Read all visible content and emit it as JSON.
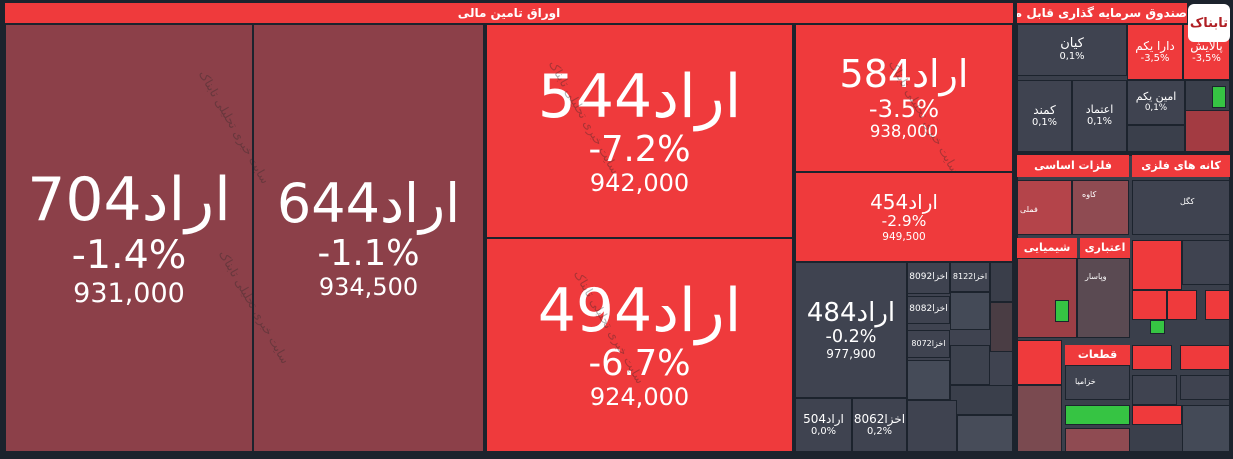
{
  "logo": "تابناک",
  "watermark": "سایت خبری تحلیلی تابناک",
  "groups": [
    {
      "title": "اوراق تامین مالی",
      "tiles": [
        {
          "name": "اراد704",
          "change": "-1.4%",
          "price": "931,000"
        },
        {
          "name": "اراد644",
          "change": "-1.1%",
          "price": "934,500"
        },
        {
          "name": "اراد544",
          "change": "-7.2%",
          "price": "942,000"
        },
        {
          "name": "اراد494",
          "change": "-6.7%",
          "price": "924,000"
        },
        {
          "name": "اراد584",
          "change": "-3.5%",
          "price": "938,000"
        },
        {
          "name": "اراد454",
          "change": "-2.9%",
          "price": "949,500"
        },
        {
          "name": "اراد484",
          "change": "-0.2%",
          "price": "977,900"
        },
        {
          "name": "اراد504",
          "change": "0,0%"
        },
        {
          "name": "اخزا8062",
          "change": "0,2%"
        },
        {
          "name": "اخزا8092"
        },
        {
          "name": "اخزا8122"
        },
        {
          "name": "اخزا8082"
        },
        {
          "name": "اخزا8072"
        }
      ]
    },
    {
      "title": "صندوق سرمایه گذاری قابل معامله",
      "tiles": [
        {
          "name": "کیان",
          "change": "0,1%"
        },
        {
          "name": "دارا یکم",
          "change": "-3,5%"
        },
        {
          "name": "پالایش",
          "change": "-3,5%"
        },
        {
          "name": "کمند",
          "change": "0,1%"
        },
        {
          "name": "اعتماد",
          "change": "0,1%"
        },
        {
          "name": "امین یکم",
          "change": "0,1%"
        }
      ]
    }
  ],
  "sectors": [
    {
      "title": "فلزات اساسی",
      "items": [
        "کاوه",
        "فملی"
      ]
    },
    {
      "title": "کانه های فلزی",
      "items": [
        "کگل"
      ]
    },
    {
      "title": "شیمیایی",
      "items": []
    },
    {
      "title": "اعتباری",
      "items": [
        "وپاسار"
      ]
    },
    {
      "title": "قطعات",
      "items": [
        "خزامیا"
      ]
    }
  ]
}
